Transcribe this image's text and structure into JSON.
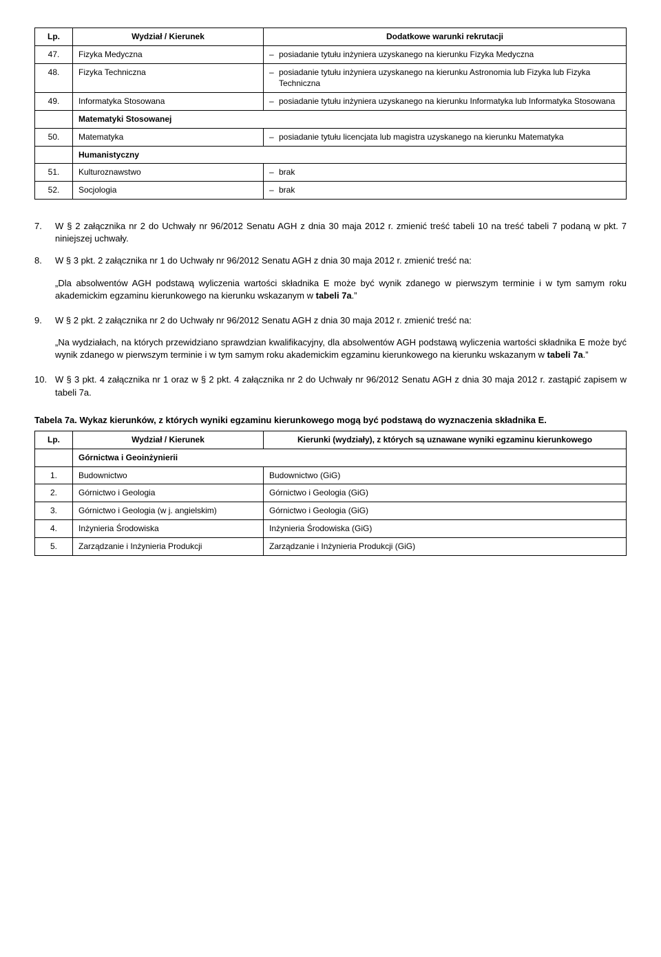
{
  "table1": {
    "headers": [
      "Lp.",
      "Wydział / Kierunek",
      "Dodatkowe warunki rekrutacji"
    ],
    "rows": [
      {
        "lp": "47.",
        "name": "Fizyka Medyczna",
        "extra": "posiadanie tytułu inżyniera uzyskanego na kierunku Fizyka Medyczna"
      },
      {
        "lp": "48.",
        "name": "Fizyka Techniczna",
        "extra": "posiadanie tytułu inżyniera uzyskanego na kierunku Astronomia lub Fizyka lub Fizyka Techniczna"
      },
      {
        "lp": "49.",
        "name": "Informatyka Stosowana",
        "extra": "posiadanie tytułu inżyniera uzyskanego na kierunku Informatyka lub Informatyka Stosowana"
      }
    ],
    "section1": "Matematyki Stosowanej",
    "row50": {
      "lp": "50.",
      "name": "Matematyka",
      "extra": "posiadanie tytułu licencjata lub magistra uzyskanego na kierunku Matematyka"
    },
    "section2": "Humanistyczny",
    "row51": {
      "lp": "51.",
      "name": "Kulturoznawstwo",
      "extra": "brak"
    },
    "row52": {
      "lp": "52.",
      "name": "Socjologia",
      "extra": "brak"
    }
  },
  "para7": {
    "num": "7.",
    "text": "W § 2 załącznika nr 2 do Uchwały nr 96/2012 Senatu AGH z dnia 30 maja 2012 r. zmienić treść tabeli 10 na treść tabeli 7 podaną w pkt. 7 niniejszej uchwały."
  },
  "para8": {
    "num": "8.",
    "text": "W § 3 pkt. 2 załącznika nr 1 do Uchwały nr 96/2012 Senatu AGH z dnia 30 maja 2012 r. zmienić treść na:",
    "quote_pre": "„Dla absolwentów AGH podstawą wyliczenia wartości składnika E może być wynik zdanego w pierwszym terminie i w tym samym roku akademickim egzaminu kierunkowego na kierunku wskazanym w ",
    "quote_bold": "tabeli 7a",
    "quote_post": ".”"
  },
  "para9": {
    "num": "9.",
    "text": "W § 2 pkt. 2 załącznika nr 2 do Uchwały nr 96/2012 Senatu AGH z dnia 30 maja 2012 r. zmienić treść na:",
    "quote_pre": "„Na wydziałach, na których przewidziano sprawdzian kwalifikacyjny, dla absolwentów AGH podstawą wyliczenia wartości składnika E może być wynik zdanego w pierwszym terminie i w tym samym roku akademickim egzaminu kierunkowego na kierunku wskazanym w ",
    "quote_bold": "tabeli 7a",
    "quote_post": ".”"
  },
  "para10": {
    "num": "10.",
    "text": "W § 3 pkt. 4 załącznika nr 1 oraz w § 2 pkt. 4 załącznika nr 2 do Uchwały nr 96/2012 Senatu AGH z dnia 30 maja 2012 r. zastąpić zapisem w tabeli 7a."
  },
  "table2_title": "Tabela 7a. Wykaz kierunków, z których wyniki egzaminu kierunkowego mogą być podstawą do wyznaczenia składnika E.",
  "table2": {
    "headers": [
      "Lp.",
      "Wydział / Kierunek",
      "Kierunki (wydziały), z których są uznawane wyniki egzaminu kierunkowego"
    ],
    "section": "Górnictwa i Geoinżynierii",
    "rows": [
      {
        "lp": "1.",
        "name": "Budownictwo",
        "val": "Budownictwo (GiG)"
      },
      {
        "lp": "2.",
        "name": "Górnictwo i Geologia",
        "val": "Górnictwo i Geologia (GiG)"
      },
      {
        "lp": "3.",
        "name": "Górnictwo i Geologia (w j. angielskim)",
        "val": "Górnictwo i Geologia (GiG)"
      },
      {
        "lp": "4.",
        "name": "Inżynieria Środowiska",
        "val": "Inżynieria Środowiska (GiG)"
      },
      {
        "lp": "5.",
        "name": "Zarządzanie i Inżynieria Produkcji",
        "val": "Zarządzanie i Inżynieria Produkcji (GiG)"
      }
    ]
  }
}
